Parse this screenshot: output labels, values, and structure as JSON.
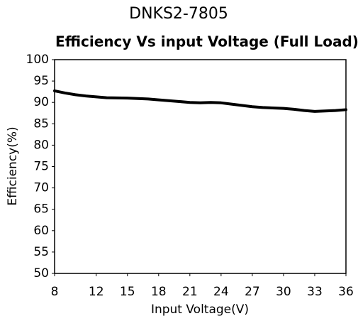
{
  "chart_data": {
    "type": "line",
    "title": "DNKS2-7805",
    "subtitle": "Efficiency Vs input Voltage (Full Load)",
    "x_label": "Input Voltage(V)",
    "y_label": "Efficiency(%)",
    "x": [
      8,
      9,
      10,
      11,
      12,
      13,
      15,
      17,
      18,
      20,
      21,
      22,
      23,
      24,
      25,
      27,
      28,
      30,
      31,
      32,
      33,
      34,
      35,
      36
    ],
    "series": [
      {
        "name": "Efficiency",
        "color": "#000000",
        "values": [
          92.7,
          92.2,
          91.8,
          91.5,
          91.3,
          91.1,
          91.0,
          90.8,
          90.6,
          90.2,
          90.0,
          89.9,
          90.0,
          89.9,
          89.6,
          89.0,
          88.8,
          88.6,
          88.4,
          88.1,
          87.9,
          88.0,
          88.1,
          88.3
        ]
      }
    ],
    "xlim": [
      8,
      36
    ],
    "xticks": [
      8,
      12,
      15,
      18,
      21,
      24,
      27,
      30,
      33,
      36
    ],
    "ylim": [
      50,
      100
    ],
    "yticks": [
      50,
      55,
      60,
      65,
      70,
      75,
      80,
      85,
      90,
      95,
      100
    ],
    "grid": false
  }
}
